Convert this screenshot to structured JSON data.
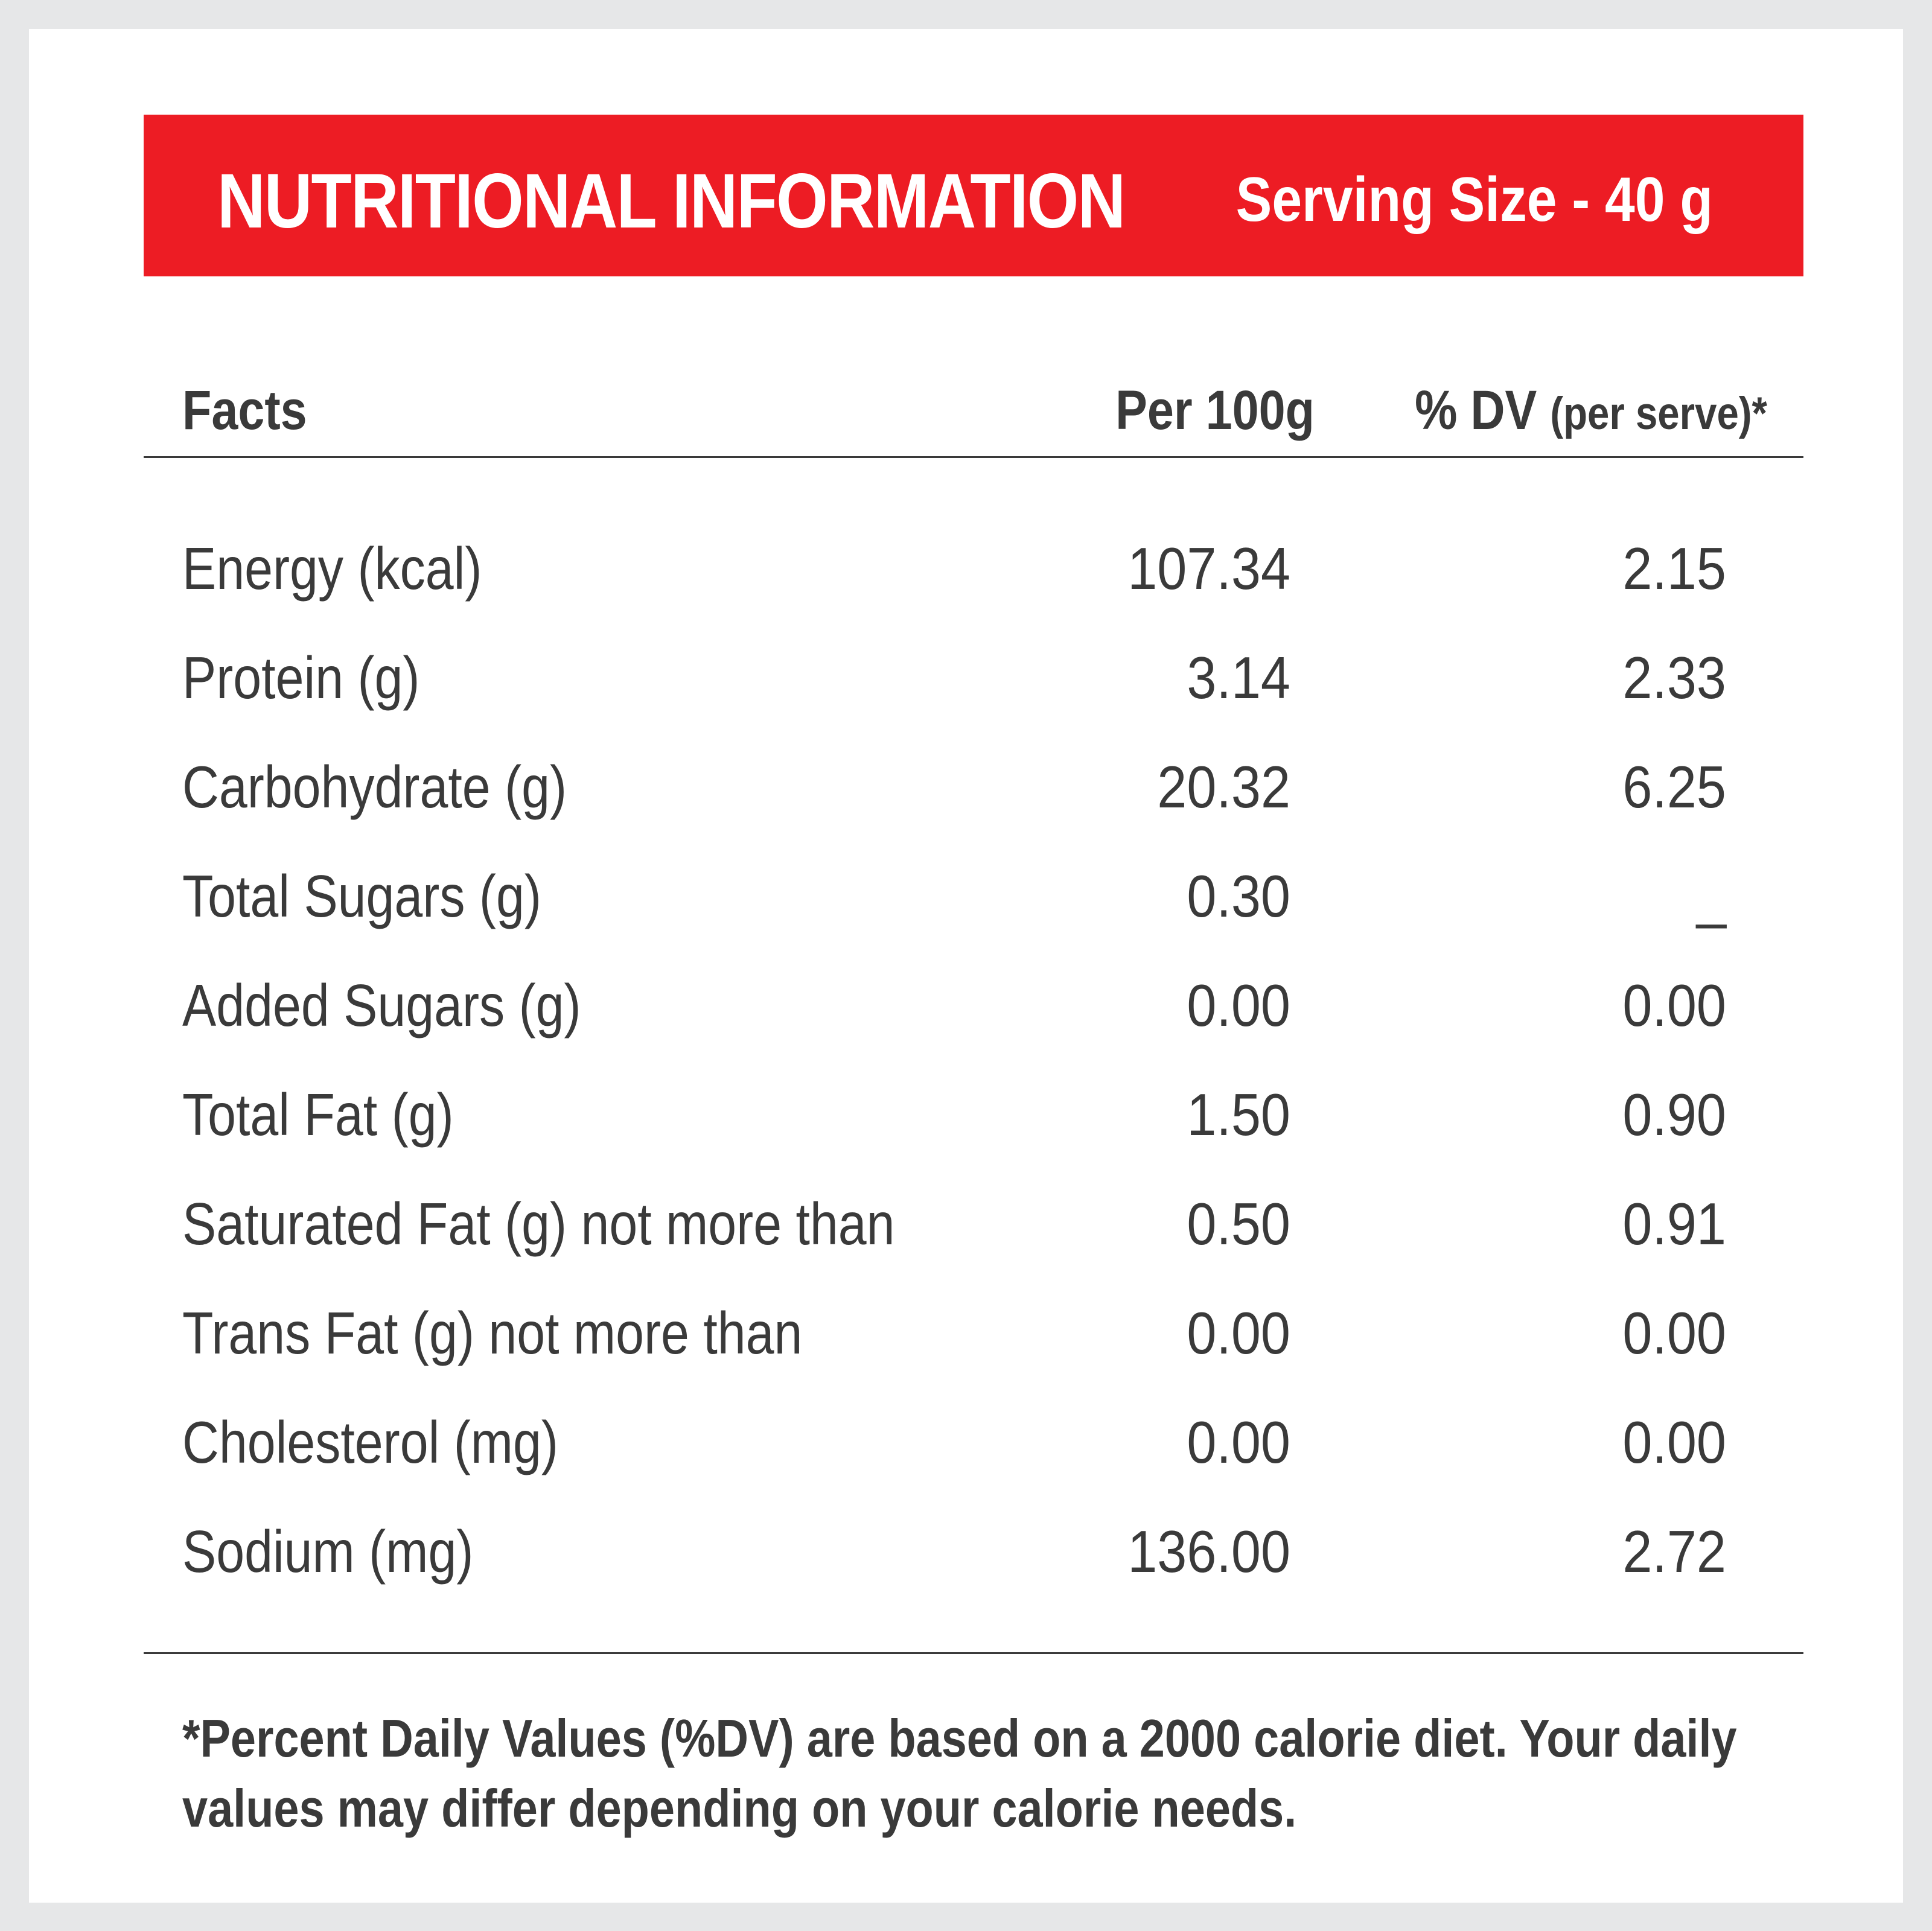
{
  "banner": {
    "title": "NUTRITIONAL INFORMATION",
    "serving_size": "Serving Size - 40 g"
  },
  "colors": {
    "banner_red": "#ed1c24",
    "text_gray": "#3a3a3a",
    "frame_gray": "#e6e7e8"
  },
  "table": {
    "headers": {
      "facts": "Facts",
      "per_100g": "Per 100g",
      "dv_main": "% DV",
      "dv_sub": "(per serve)*"
    },
    "rows": [
      {
        "name": "Energy (kcal)",
        "per_100g": "107.34",
        "dv": "2.15"
      },
      {
        "name": "Protein (g)",
        "per_100g": "3.14",
        "dv": "2.33"
      },
      {
        "name": "Carbohydrate (g)",
        "per_100g": "20.32",
        "dv": "6.25"
      },
      {
        "name": "Total Sugars (g)",
        "per_100g": "0.30",
        "dv": "_"
      },
      {
        "name": "Added Sugars (g)",
        "per_100g": "0.00",
        "dv": "0.00"
      },
      {
        "name": "Total Fat (g)",
        "per_100g": "1.50",
        "dv": "0.90"
      },
      {
        "name": "Saturated Fat (g) not more than",
        "per_100g": "0.50",
        "dv": "0.91"
      },
      {
        "name": "Trans Fat (g) not more than",
        "per_100g": "0.00",
        "dv": "0.00"
      },
      {
        "name": "Cholesterol (mg)",
        "per_100g": "0.00",
        "dv": "0.00"
      },
      {
        "name": "Sodium (mg)",
        "per_100g": "136.00",
        "dv": "2.72"
      }
    ]
  },
  "footnote": {
    "line1": "*Percent Daily Values (%DV) are based on a 2000 calorie diet. Your daily",
    "line2": "values may differ depending on your calorie needs."
  }
}
